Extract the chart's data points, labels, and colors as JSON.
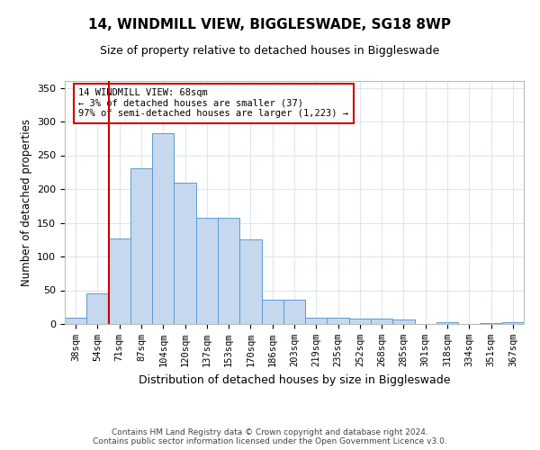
{
  "title": "14, WINDMILL VIEW, BIGGLESWADE, SG18 8WP",
  "subtitle": "Size of property relative to detached houses in Biggleswade",
  "xlabel": "Distribution of detached houses by size in Biggleswade",
  "ylabel": "Number of detached properties",
  "categories": [
    "38sqm",
    "54sqm",
    "71sqm",
    "87sqm",
    "104sqm",
    "120sqm",
    "137sqm",
    "153sqm",
    "170sqm",
    "186sqm",
    "203sqm",
    "219sqm",
    "235sqm",
    "252sqm",
    "268sqm",
    "285sqm",
    "301sqm",
    "318sqm",
    "334sqm",
    "351sqm",
    "367sqm"
  ],
  "values": [
    10,
    46,
    127,
    231,
    283,
    210,
    157,
    157,
    126,
    36,
    36,
    10,
    9,
    8,
    8,
    7,
    0,
    3,
    0,
    2,
    3
  ],
  "bar_color": "#c5d8ed",
  "bar_edge_color": "#5b9bd5",
  "property_line_x": 1.5,
  "annotation_text": "14 WINDMILL VIEW: 68sqm\n← 3% of detached houses are smaller (37)\n97% of semi-detached houses are larger (1,223) →",
  "annotation_box_color": "#ffffff",
  "annotation_box_edge": "#cc0000",
  "vline_color": "#cc0000",
  "grid_color": "#dce6f1",
  "background_color": "#ffffff",
  "footer": "Contains HM Land Registry data © Crown copyright and database right 2024.\nContains public sector information licensed under the Open Government Licence v3.0.",
  "ylim": [
    0,
    360
  ],
  "yticks": [
    0,
    50,
    100,
    150,
    200,
    250,
    300,
    350
  ]
}
